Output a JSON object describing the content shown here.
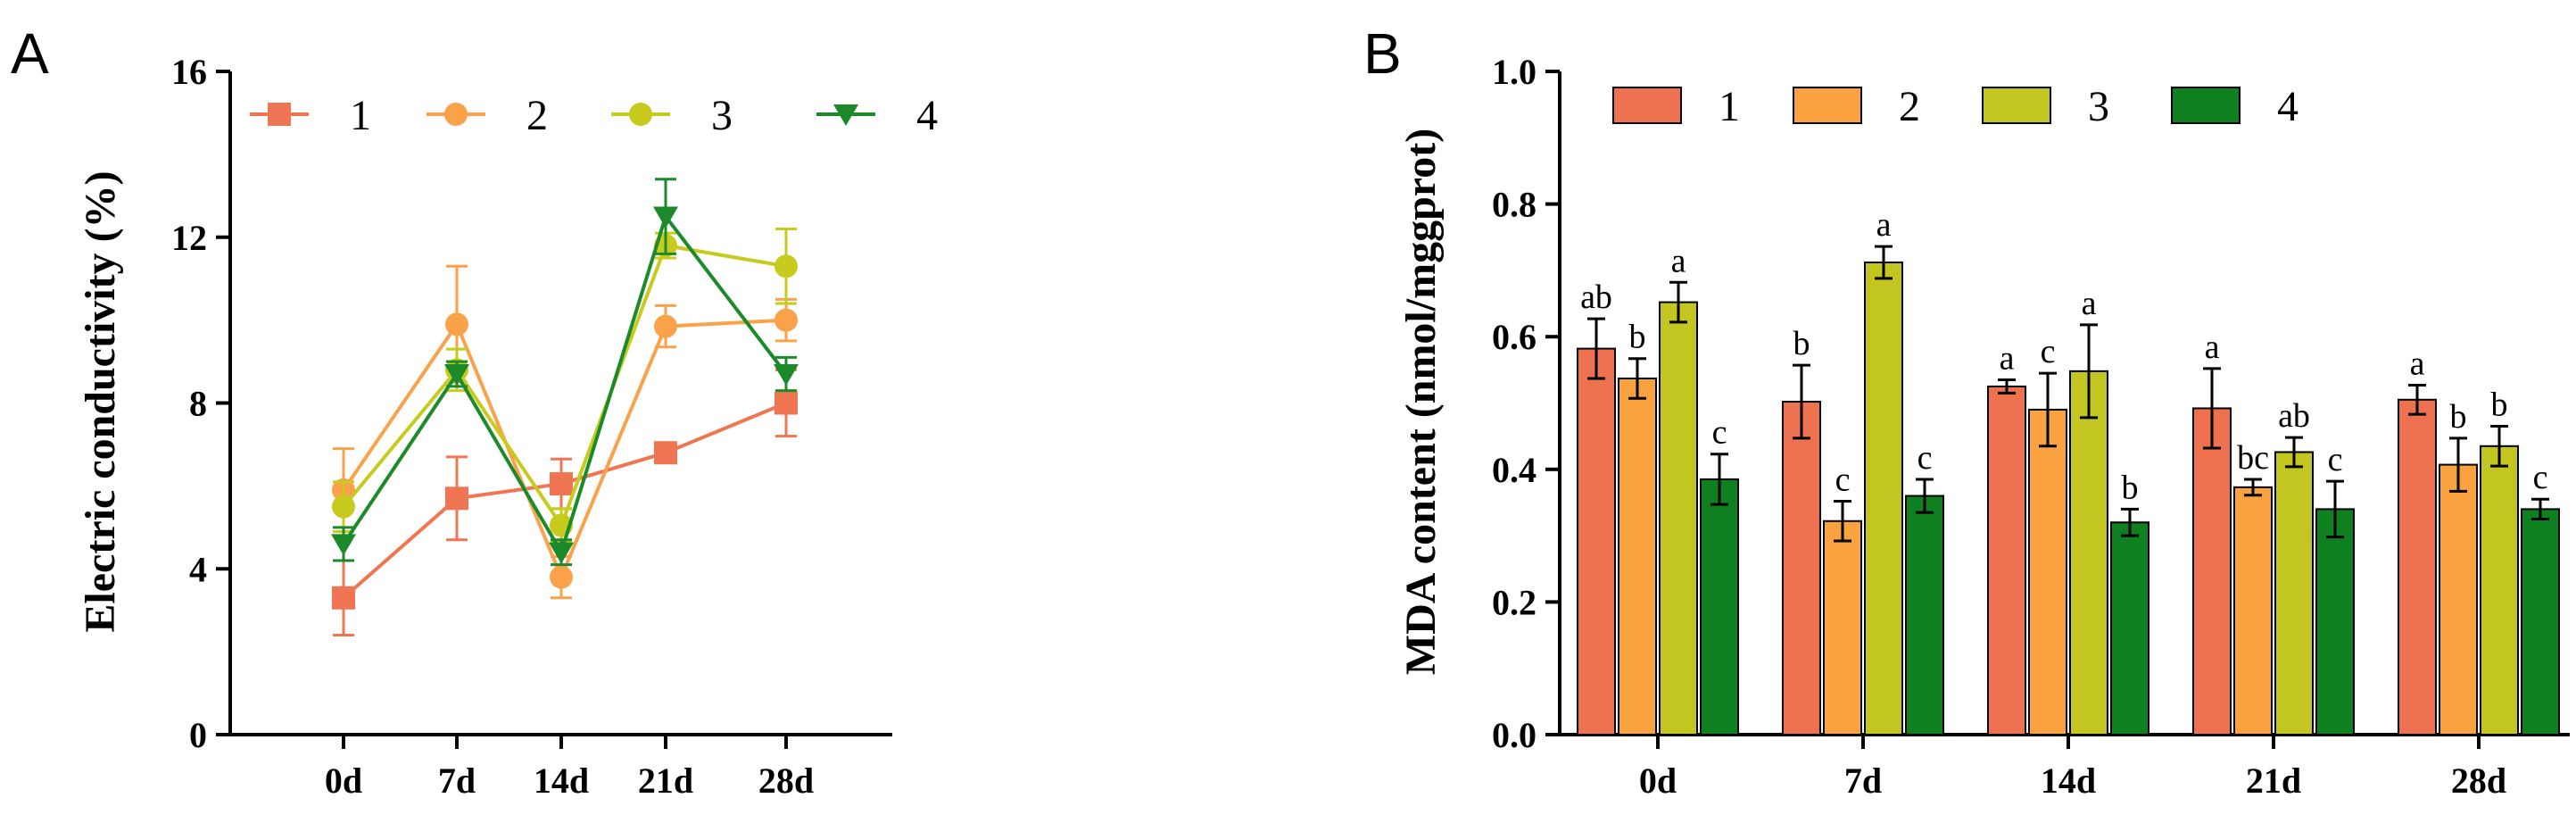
{
  "chart_data": [
    {
      "panel": "A",
      "type": "line",
      "title": "",
      "ylabel": "Electric conductivity (%)",
      "xlabel": "",
      "categories": [
        "0d",
        "7d",
        "14d",
        "21d",
        "28d"
      ],
      "ylim": [
        0,
        16
      ],
      "yticks": [
        0,
        4,
        8,
        12,
        16
      ],
      "series": [
        {
          "name": "1",
          "color": "#F07653",
          "marker": "square",
          "values": [
            3.3,
            5.7,
            6.05,
            6.8,
            8.0
          ],
          "errors": [
            0.9,
            1.0,
            0.6,
            0.0,
            0.8
          ]
        },
        {
          "name": "2",
          "color": "#F9A24A",
          "marker": "circle",
          "values": [
            5.9,
            9.9,
            3.8,
            9.85,
            10.0
          ],
          "errors": [
            1.0,
            1.4,
            0.5,
            0.5,
            0.5
          ]
        },
        {
          "name": "3",
          "color": "#C7CB1E",
          "marker": "circle",
          "values": [
            5.5,
            8.8,
            5.05,
            11.8,
            11.3
          ],
          "errors": [
            0.6,
            0.5,
            0.4,
            0.3,
            0.9
          ]
        },
        {
          "name": "4",
          "color": "#1C8A2A",
          "marker": "triangle",
          "values": [
            4.6,
            8.7,
            4.4,
            12.5,
            8.7
          ],
          "errors": [
            0.4,
            0.3,
            0.3,
            0.9,
            0.4
          ]
        }
      ]
    },
    {
      "panel": "B",
      "type": "bar",
      "title": "",
      "ylabel": "MDA content (nmol/mggprot)",
      "xlabel": "",
      "categories": [
        "0d",
        "7d",
        "14d",
        "21d",
        "28d"
      ],
      "ylim": [
        0,
        1.0
      ],
      "yticks": [
        "0.0",
        "0.2",
        "0.4",
        "0.6",
        "0.8",
        "1.0"
      ],
      "series": [
        {
          "name": "1",
          "color": "#EE7150",
          "values": [
            0.582,
            0.502,
            0.525,
            0.492,
            0.505
          ],
          "errors": [
            0.045,
            0.055,
            0.01,
            0.06,
            0.022
          ],
          "labels": [
            "ab",
            "b",
            "a",
            "a",
            "a"
          ]
        },
        {
          "name": "2",
          "color": "#F9A23F",
          "values": [
            0.537,
            0.322,
            0.49,
            0.373,
            0.407
          ],
          "errors": [
            0.03,
            0.03,
            0.055,
            0.012,
            0.04
          ],
          "labels": [
            "b",
            "c",
            "c",
            "bc",
            "b"
          ]
        },
        {
          "name": "3",
          "color": "#C3C520",
          "values": [
            0.652,
            0.712,
            0.548,
            0.426,
            0.435
          ],
          "errors": [
            0.03,
            0.024,
            0.07,
            0.022,
            0.03
          ],
          "labels": [
            "a",
            "a",
            "a",
            "ab",
            "b"
          ]
        },
        {
          "name": "4",
          "color": "#0F8020",
          "values": [
            0.385,
            0.36,
            0.32,
            0.34,
            0.34
          ],
          "errors": [
            0.038,
            0.025,
            0.02,
            0.042,
            0.015
          ],
          "labels": [
            "c",
            "c",
            "b",
            "c",
            "c"
          ]
        }
      ]
    }
  ],
  "panels": {
    "a_letter": "A",
    "b_letter": "B"
  }
}
